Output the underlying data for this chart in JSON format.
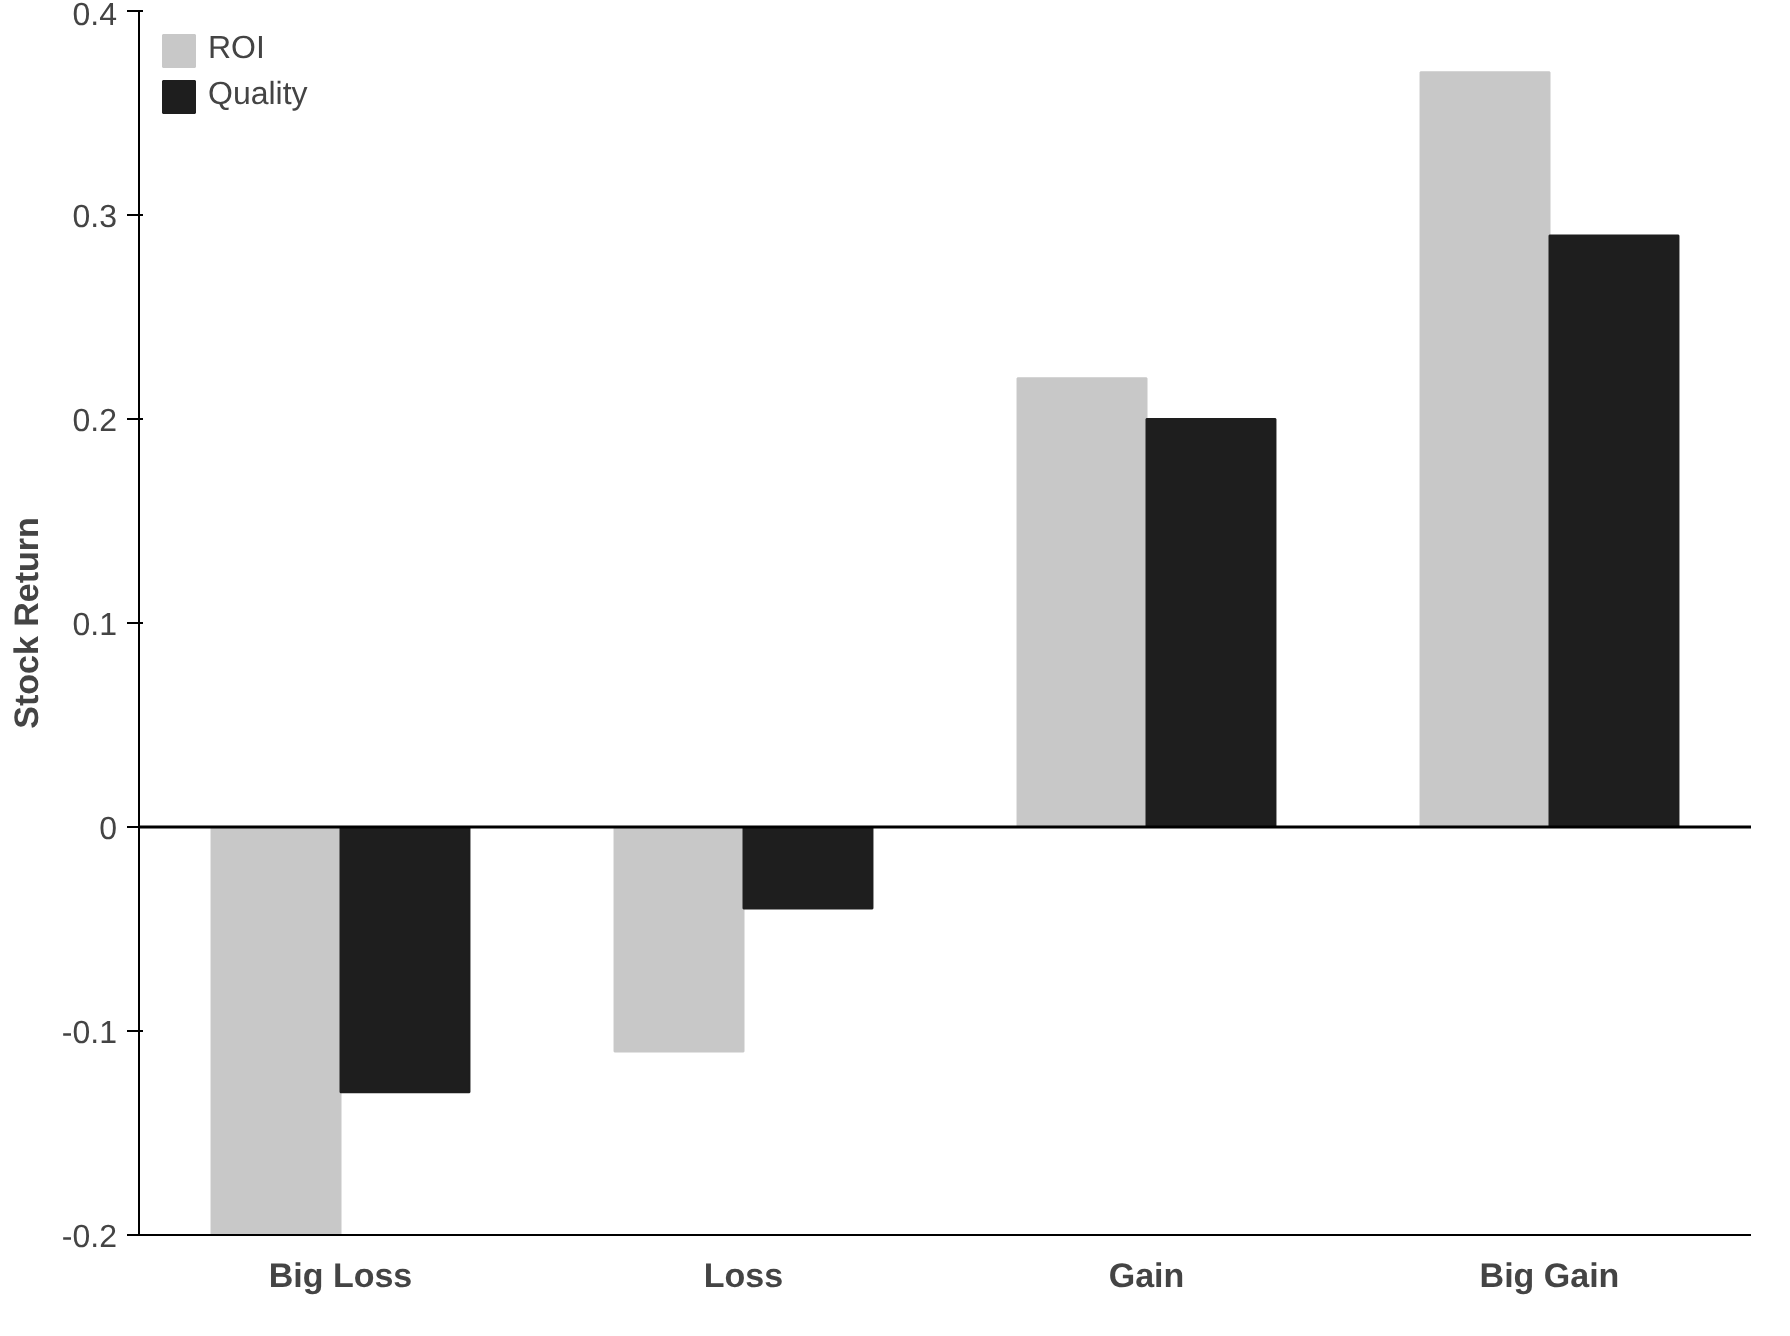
{
  "chart_data": {
    "type": "bar",
    "ylabel": "Stock Return",
    "categories": [
      "Big Loss",
      "Loss",
      "Gain",
      "Big Gain"
    ],
    "series": [
      {
        "name": "ROI",
        "color": "#c8c8c8",
        "values": [
          -0.2,
          -0.11,
          0.22,
          0.37
        ]
      },
      {
        "name": "Quality",
        "color": "#1e1e1e",
        "values": [
          -0.13,
          -0.04,
          0.2,
          0.29
        ]
      }
    ],
    "ylim": [
      -0.2,
      0.4
    ],
    "yticks": [
      -0.2,
      -0.1,
      0,
      0.1,
      0.2,
      0.3,
      0.4
    ],
    "ref_lines": [
      {
        "axis": "y",
        "value": 0,
        "color": "#000000"
      }
    ],
    "grid": false,
    "legend": "top left"
  }
}
